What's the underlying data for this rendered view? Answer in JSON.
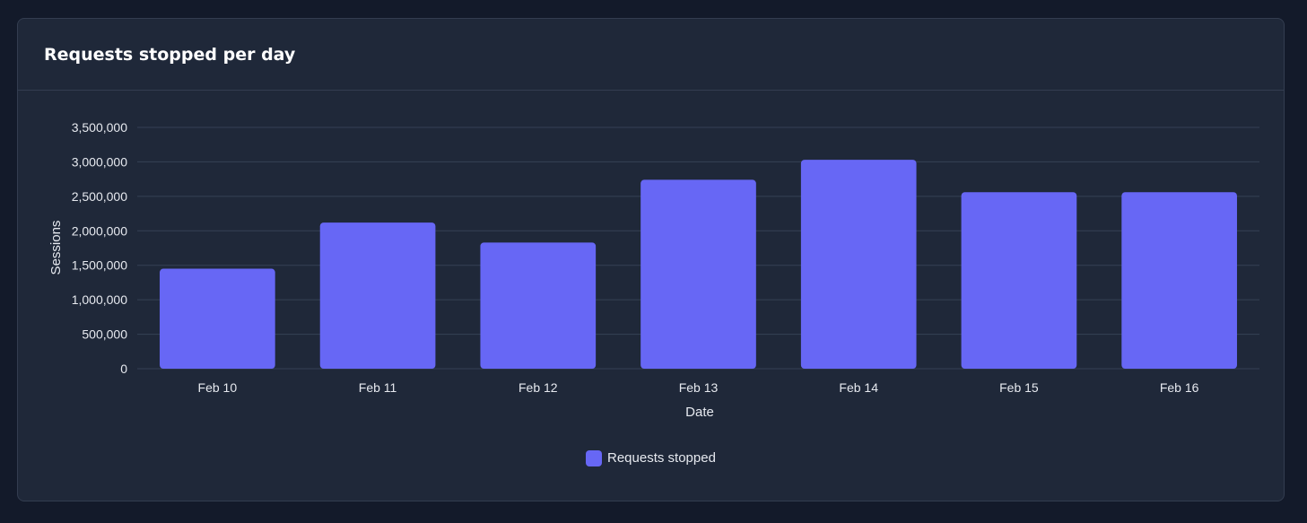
{
  "card": {
    "title": "Requests stopped per day"
  },
  "chart_data": {
    "type": "bar",
    "categories": [
      "Feb 10",
      "Feb 11",
      "Feb 12",
      "Feb 13",
      "Feb 14",
      "Feb 15",
      "Feb 16"
    ],
    "series": [
      {
        "name": "Requests stopped",
        "values": [
          1450000,
          2120000,
          1830000,
          2740000,
          3030000,
          2560000,
          2560000
        ],
        "color": "#6767f5"
      }
    ],
    "xlabel": "Date",
    "ylabel": "Sessions",
    "ylim": [
      0,
      3500000
    ],
    "yticks": [
      "0",
      "500,000",
      "1,000,000",
      "1,500,000",
      "2,000,000",
      "2,500,000",
      "3,000,000",
      "3,500,000"
    ],
    "grid": true,
    "legend_position": "bottom"
  }
}
